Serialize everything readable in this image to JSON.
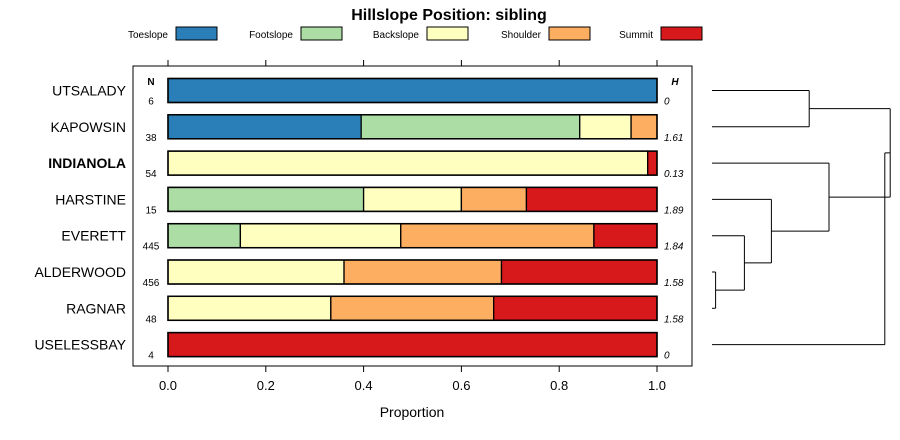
{
  "chart_data": {
    "type": "bar",
    "stacked": true,
    "orientation": "horizontal",
    "title": "Hillslope Position: sibling",
    "xlabel": "Proportion",
    "ylabel": "",
    "xlim": [
      0,
      1
    ],
    "x_ticks": [
      "0.0",
      "0.2",
      "0.4",
      "0.6",
      "0.8",
      "1.0"
    ],
    "n_header": "N",
    "h_header": "H",
    "legend_position": "top",
    "series": [
      {
        "name": "Toeslope",
        "color": "#2b7fb8"
      },
      {
        "name": "Footslope",
        "color": "#abdda4"
      },
      {
        "name": "Backslope",
        "color": "#ffffbf"
      },
      {
        "name": "Shoulder",
        "color": "#fdae61"
      },
      {
        "name": "Summit",
        "color": "#d7191c"
      }
    ],
    "rows": [
      {
        "label": "UTSALADY",
        "bold": false,
        "n": "6",
        "h": "0",
        "values": [
          1.0,
          0,
          0,
          0,
          0
        ]
      },
      {
        "label": "KAPOWSIN",
        "bold": false,
        "n": "38",
        "h": "1.61",
        "values": [
          0.395,
          0.447,
          0.105,
          0.053,
          0
        ]
      },
      {
        "label": "INDIANOLA",
        "bold": true,
        "n": "54",
        "h": "0.13",
        "values": [
          0,
          0,
          0.981,
          0,
          0.019
        ]
      },
      {
        "label": "HARSTINE",
        "bold": false,
        "n": "15",
        "h": "1.89",
        "values": [
          0,
          0.4,
          0.2,
          0.133,
          0.267
        ]
      },
      {
        "label": "EVERETT",
        "bold": false,
        "n": "445",
        "h": "1.84",
        "values": [
          0,
          0.148,
          0.328,
          0.395,
          0.129
        ]
      },
      {
        "label": "ALDERWOOD",
        "bold": false,
        "n": "456",
        "h": "1.58",
        "values": [
          0,
          0,
          0.36,
          0.322,
          0.318
        ]
      },
      {
        "label": "RAGNAR",
        "bold": false,
        "n": "48",
        "h": "1.58",
        "values": [
          0,
          0,
          0.333,
          0.333,
          0.334
        ]
      },
      {
        "label": "USELESSBAY",
        "bold": false,
        "n": "4",
        "h": "0",
        "values": [
          0,
          0,
          0,
          0,
          1.0
        ]
      }
    ],
    "dendrogram": {
      "leaf_order": [
        "UTSALADY",
        "KAPOWSIN",
        "INDIANOLA",
        "HARSTINE",
        "EVERETT",
        "ALDERWOOD",
        "RAGNAR",
        "USELESSBAY"
      ],
      "merges": [
        {
          "left": "ALDERWOOD",
          "right": "RAGNAR",
          "height": 0.02
        },
        {
          "left": "EVERETT",
          "right": "ALDERWOOD+RAGNAR",
          "height": 0.18
        },
        {
          "left": "HARSTINE",
          "right": "EVERETT+ALDERWOOD+RAGNAR",
          "height": 0.33
        },
        {
          "left": "UTSALADY",
          "right": "KAPOWSIN",
          "height": 0.54
        },
        {
          "left": "INDIANOLA",
          "right": "HARSTINE+EVERETT+ALDERWOOD+RAGNAR",
          "height": 0.65
        },
        {
          "left": "UTSALADY+KAPOWSIN",
          "right": "INDIANOLA+HARSTINE+EVERETT+ALDERWOOD+RAGNAR",
          "height": 0.99
        },
        {
          "left": "UTSALADY+KAPOWSIN+INDIANOLA+HARSTINE+EVERETT+ALDERWOOD+RAGNAR",
          "right": "USELESSBAY",
          "height": 0.96
        }
      ]
    }
  }
}
